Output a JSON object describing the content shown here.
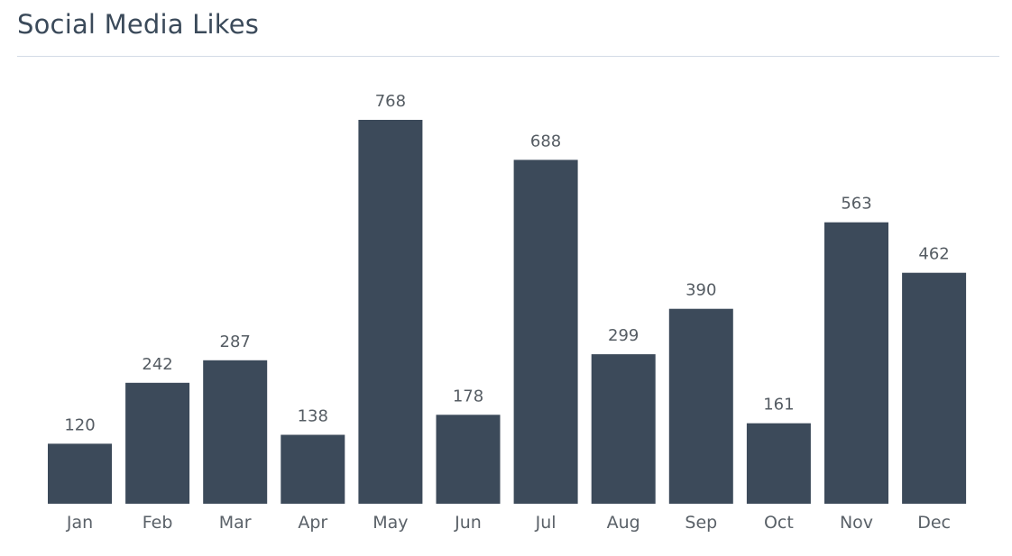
{
  "title": "Social Media Likes",
  "colors": {
    "bar": "#3c4a5a",
    "title": "#3b4a5a",
    "divider": "#d3dbe6",
    "label": "#555c63"
  },
  "chart_data": {
    "type": "bar",
    "title": "Social Media Likes",
    "xlabel": "",
    "ylabel": "",
    "categories": [
      "Jan",
      "Feb",
      "Mar",
      "Apr",
      "May",
      "Jun",
      "Jul",
      "Aug",
      "Sep",
      "Oct",
      "Nov",
      "Dec"
    ],
    "values": [
      120,
      242,
      287,
      138,
      768,
      178,
      688,
      299,
      390,
      161,
      563,
      462
    ],
    "ylim": [
      0,
      768
    ],
    "grid": false,
    "legend": "none",
    "data_labels": true
  }
}
